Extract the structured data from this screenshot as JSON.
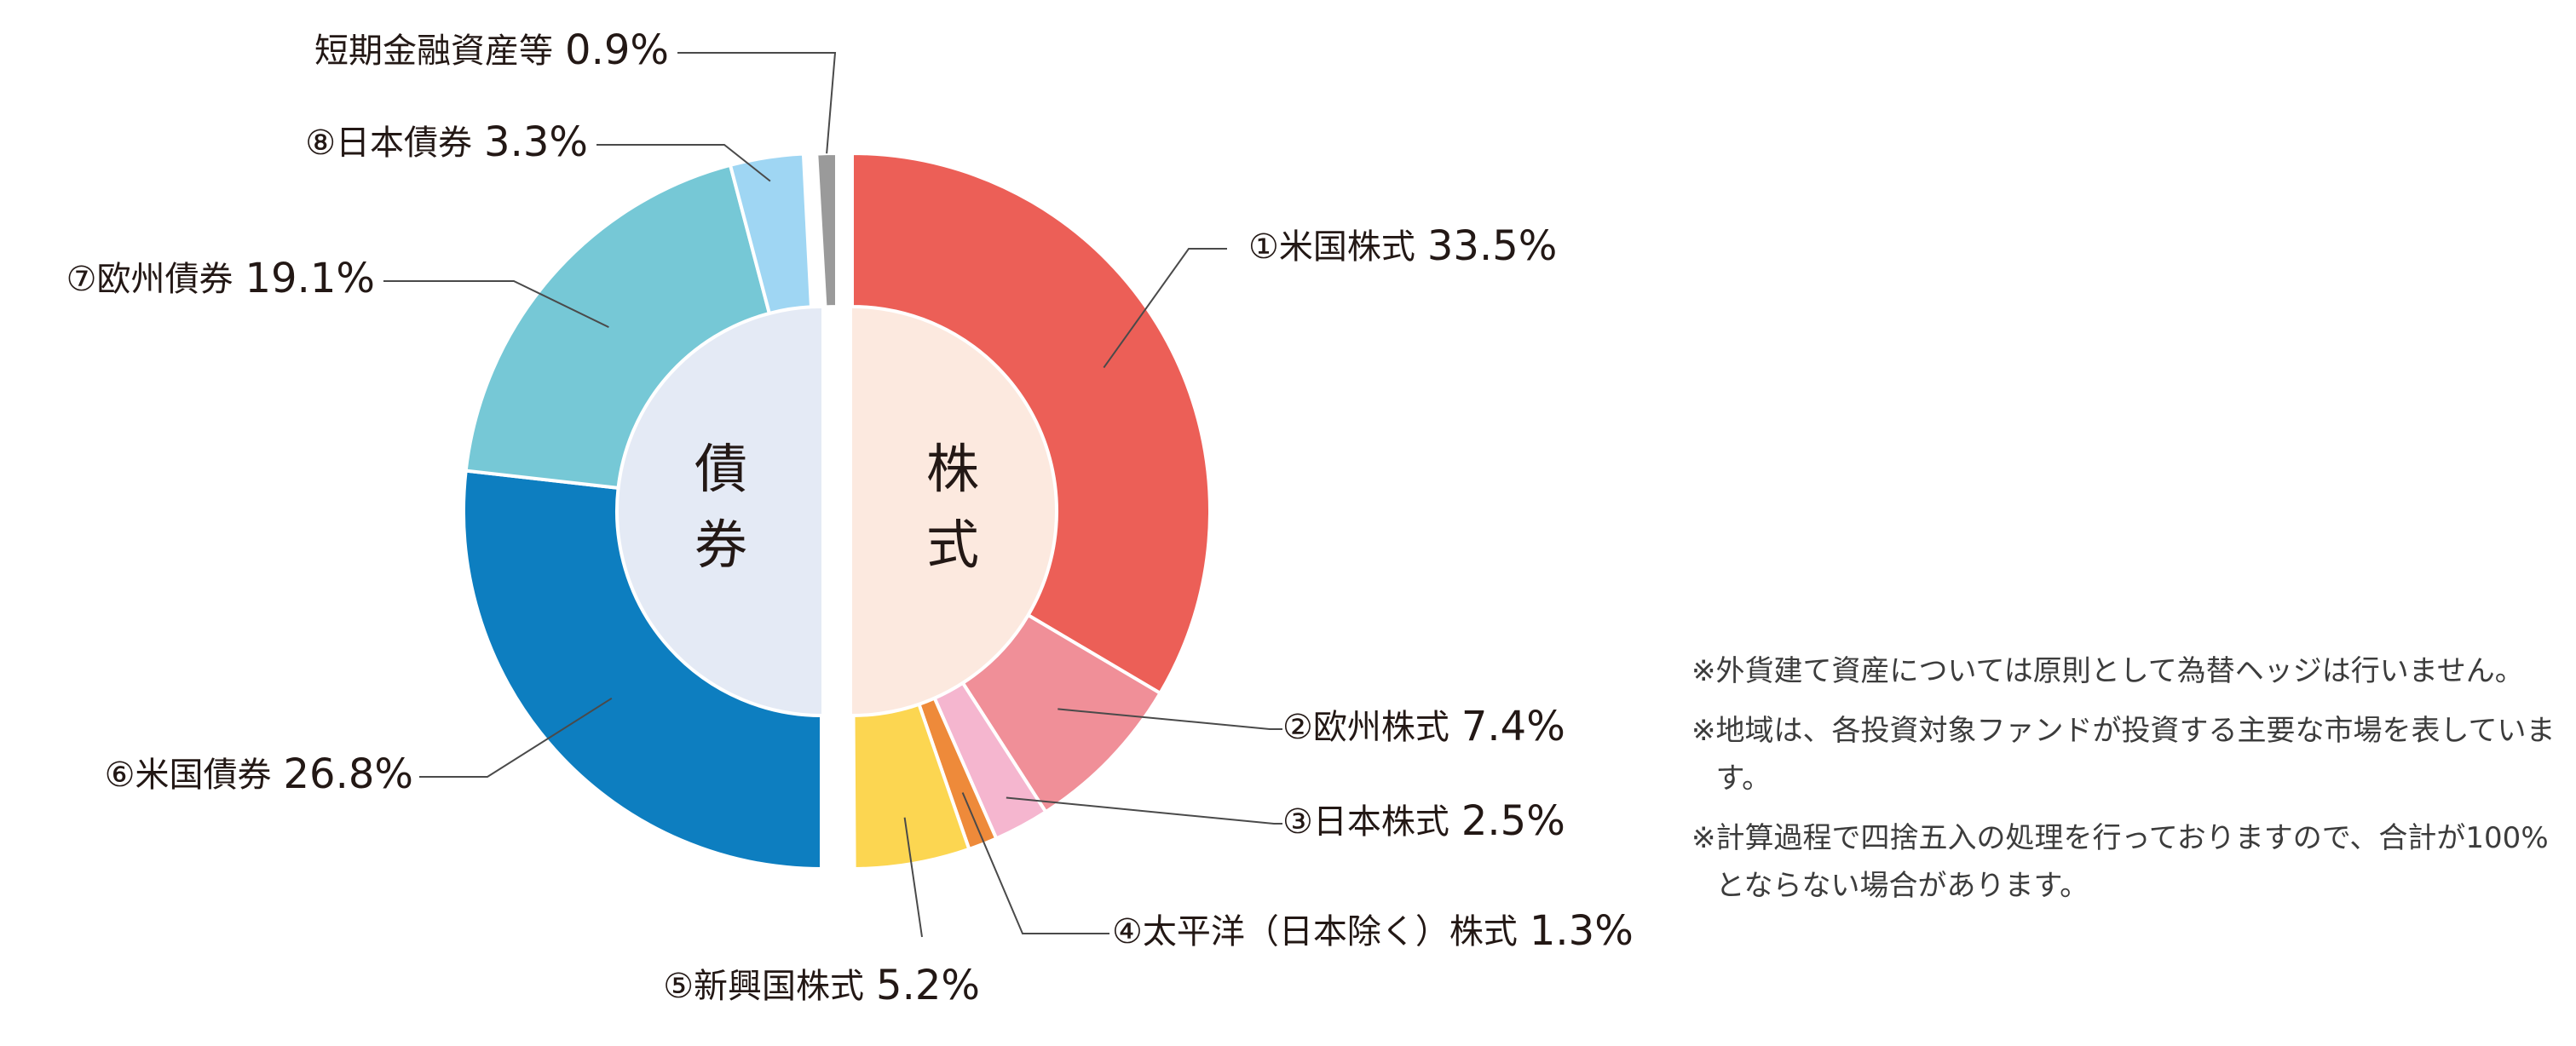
{
  "chart_data": {
    "type": "pie",
    "categories": [
      "①米国株式",
      "②欧州株式",
      "③日本株式",
      "④太平洋（日本除く）株式",
      "⑤新興国株式",
      "⑥米国債券",
      "⑦欧州債券",
      "⑧日本債券",
      "短期金融資産等"
    ],
    "values": [
      33.5,
      7.4,
      2.5,
      1.3,
      5.2,
      26.8,
      19.1,
      3.3,
      0.9
    ],
    "value_labels": [
      "33.5%",
      "7.4%",
      "2.5%",
      "1.3%",
      "5.2%",
      "26.8%",
      "19.1%",
      "3.3%",
      "0.9%"
    ],
    "colors": [
      "#ec5f57",
      "#f08f98",
      "#f5b6cf",
      "#ee8a3a",
      "#fcd651",
      "#0d7ec0",
      "#76c8d6",
      "#9fd6f3",
      "#9a9a9a"
    ],
    "groups": [
      {
        "label": "株式",
        "chars": [
          "株",
          "式"
        ],
        "color": "#fce9df"
      },
      {
        "label": "債券",
        "chars": [
          "債",
          "券"
        ],
        "color": "#e4eaf5"
      }
    ]
  },
  "notes": [
    {
      "mark": "※",
      "text": "外貨建て資産については原則として為替ヘッジは行いません。"
    },
    {
      "mark": "※",
      "text": "地域は、各投資対象ファンドが投資する主要な市場を表しています。"
    },
    {
      "mark": "※",
      "text": "計算過程で四捨五入の処理を行っておりますので、合計が100%とならない場合があります。"
    }
  ]
}
